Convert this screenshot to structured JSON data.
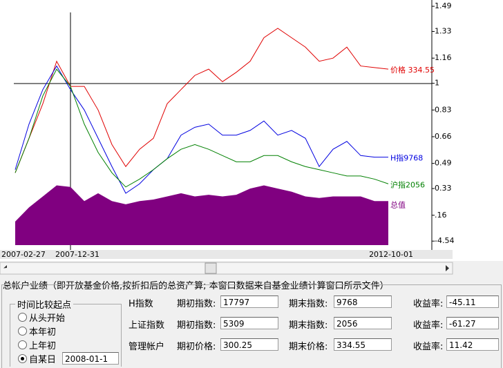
{
  "chart": {
    "type": "line",
    "categories": [
      "2007-02-27",
      null,
      null,
      "2007-12-31",
      null,
      null,
      null,
      null,
      null,
      null,
      null,
      null,
      null,
      null,
      null,
      null,
      null,
      null,
      null,
      null,
      null,
      null,
      null,
      null,
      null,
      null,
      null,
      "2012-10-01"
    ],
    "ylim": [
      -0.03,
      1.53
    ],
    "yticks": [
      1.49,
      1.33,
      1.16,
      1,
      0.83,
      0.66,
      0.49,
      0.33,
      {
        "value": 0.16,
        "label": ".16"
      },
      {
        "value": -0.00454,
        "label": "-4.54"
      }
    ],
    "series": [
      {
        "name": "价格 334.55",
        "color": "#e00000",
        "values": [
          0.43,
          0.65,
          0.87,
          1.14,
          0.98,
          0.98,
          0.83,
          0.61,
          0.47,
          0.58,
          0.65,
          0.87,
          0.96,
          1.05,
          1.09,
          1.01,
          1.07,
          1.14,
          1.29,
          1.35,
          1.29,
          1.23,
          1.14,
          1.16,
          1.23,
          1.11,
          1.1,
          1.09
        ]
      },
      {
        "name": "H指9768",
        "color": "#0000e0",
        "values": [
          0.45,
          0.74,
          0.96,
          1.11,
          0.96,
          0.83,
          0.65,
          0.47,
          0.3,
          0.36,
          0.45,
          0.52,
          0.67,
          0.72,
          0.74,
          0.67,
          0.67,
          0.7,
          0.76,
          0.67,
          0.7,
          0.65,
          0.47,
          0.58,
          0.63,
          0.54,
          0.53,
          0.53
        ]
      },
      {
        "name": "沪指2056",
        "color": "#008000",
        "values": [
          0.43,
          0.65,
          0.92,
          1.09,
          0.98,
          0.74,
          0.56,
          0.43,
          0.34,
          0.39,
          0.45,
          0.52,
          0.58,
          0.61,
          0.58,
          0.54,
          0.5,
          0.5,
          0.54,
          0.54,
          0.5,
          0.47,
          0.45,
          0.43,
          0.41,
          0.41,
          0.39,
          0.36
        ]
      },
      {
        "name": "总值",
        "color": "#800080",
        "area": true,
        "values": [
          0.12,
          0.21,
          0.28,
          0.35,
          0.34,
          0.25,
          0.3,
          0.25,
          0.23,
          0.25,
          0.26,
          0.28,
          0.3,
          0.28,
          0.29,
          0.28,
          0.29,
          0.33,
          0.35,
          0.33,
          0.31,
          0.28,
          0.27,
          0.28,
          0.28,
          0.28,
          0.25,
          0.25
        ]
      }
    ]
  },
  "panel": {
    "title": "总帐户业绩（即开放基金价格,按折扣后的总资产算; 本窗口数据来自基金业绩计算窗口所示文件）",
    "compare": {
      "title": "时间比较起点",
      "options": [
        "从头开始",
        "本年初",
        "上年初",
        "自某日"
      ],
      "date": "2008-01-1"
    },
    "rows": [
      {
        "name": "H指数",
        "start_label": "期初指数:",
        "start": "17797",
        "end_label": "期末指数:",
        "end": "9768",
        "rate_label": "收益率:",
        "rate": "-45.11"
      },
      {
        "name": "上证指数",
        "start_label": "期初指数:",
        "start": "5309",
        "end_label": "期末指数:",
        "end": "2056",
        "rate_label": "收益率:",
        "rate": "-61.27"
      },
      {
        "name": "管理帐户",
        "start_label": "期初价格:",
        "start": "300.25",
        "end_label": "期末价格:",
        "end": "334.55",
        "rate_label": "收益率:",
        "rate": "11.42"
      }
    ]
  }
}
